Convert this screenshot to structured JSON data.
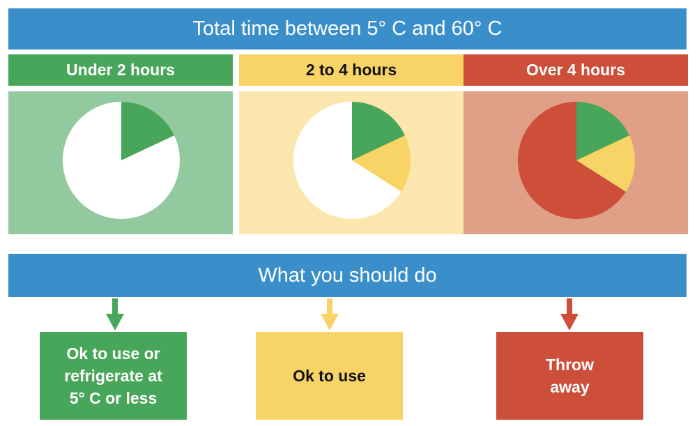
{
  "title": "Total time between 5° C and 60° C",
  "action_title": "What you should do",
  "colors": {
    "blue": "#3a8fcb",
    "green": "#48a65a",
    "yellow": "#f8d466",
    "red": "#cd4e39",
    "green_light": "#93c99e",
    "yellow_light": "#fbe6ad",
    "red_light": "#e0a087"
  },
  "columns": [
    {
      "header": "Under 2 hours",
      "header_color": "#48a65a",
      "header_text_color": "#ffffff",
      "panel_color": "#93c99e",
      "pie_fractions": [
        {
          "label": "green",
          "value": 0.18,
          "color": "#48a65a"
        },
        {
          "label": "empty",
          "value": 0.82,
          "color": "#ffffff"
        }
      ],
      "action": "Ok to use or\nrefrigerate at\n5° C or less",
      "action_color": "#48a65a",
      "action_text_color": "#ffffff"
    },
    {
      "header": "2 to 4 hours",
      "header_color": "#f8d466",
      "header_text_color": "#111111",
      "panel_color": "#fbe6ad",
      "pie_fractions": [
        {
          "label": "green",
          "value": 0.18,
          "color": "#48a65a"
        },
        {
          "label": "yellow",
          "value": 0.16,
          "color": "#f8d466"
        },
        {
          "label": "empty",
          "value": 0.66,
          "color": "#ffffff"
        }
      ],
      "action": "Ok to use",
      "action_color": "#f8d466",
      "action_text_color": "#111111"
    },
    {
      "header": "Over 4 hours",
      "header_color": "#cd4e39",
      "header_text_color": "#ffffff",
      "panel_color": "#e0a087",
      "pie_fractions": [
        {
          "label": "green",
          "value": 0.18,
          "color": "#48a65a"
        },
        {
          "label": "yellow",
          "value": 0.16,
          "color": "#f8d466"
        },
        {
          "label": "red",
          "value": 0.66,
          "color": "#cd4e39"
        }
      ],
      "action": "Throw\naway",
      "action_color": "#cd4e39",
      "action_text_color": "#ffffff"
    }
  ]
}
